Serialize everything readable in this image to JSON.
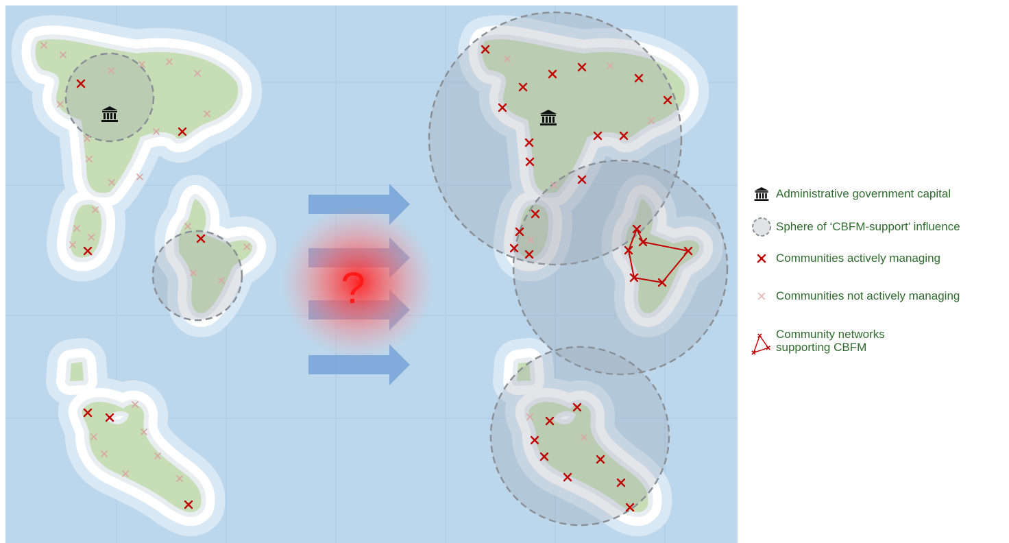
{
  "legend": {
    "capital": "Administrative government capital",
    "sphere": "Sphere of ‘CBFM-support’ influence",
    "active": "Communities actively managing",
    "inactive": "Communities not actively managing",
    "network_line1": "Community networks",
    "network_line2": "supporting CBFM"
  },
  "center_symbol": "?",
  "icons": {
    "capital": "government-building-icon",
    "active": "red-x-marker-icon",
    "inactive": "faded-x-marker-icon",
    "network": "community-network-icon",
    "sphere": "dashed-circle-icon"
  },
  "colors": {
    "sea": "#bcd7ec",
    "shallow_far": "#d9e8f5",
    "shallow_near": "#ffffff",
    "shelf": "#e8edf2",
    "land": "#c6ddb5",
    "active_marker": "#c00000",
    "inactive_marker": "#d9a8a4",
    "arrow": "#7aa6d8",
    "question_glow": "#ff2a2a",
    "legend_text": "#2f6b2f",
    "sphere_fill": "#9aa3ad"
  }
}
